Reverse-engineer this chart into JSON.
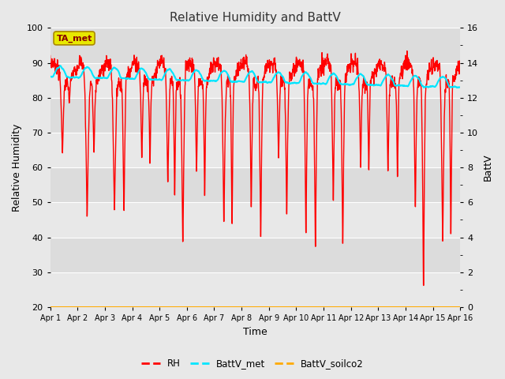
{
  "title": "Relative Humidity and BattV",
  "xlabel": "Time",
  "ylabel_left": "Relative Humidity",
  "ylabel_right": "BattV",
  "ylim_left": [
    20,
    100
  ],
  "ylim_right": [
    0,
    16
  ],
  "fig_bg_color": "#e8e8e8",
  "plot_bg_color": "#e0e0e0",
  "annotation_text": "TA_met",
  "annotation_bg": "#e8e800",
  "annotation_edge": "#aa8800",
  "annotation_text_color": "#880000",
  "rh_color": "#ff0000",
  "battv_met_color": "#00e5ff",
  "battv_soilco2_color": "#ffaa00",
  "x_ticks": [
    "Apr 1",
    "Apr 2",
    "Apr 3",
    "Apr 4",
    "Apr 5",
    "Apr 6",
    "Apr 7",
    "Apr 8",
    "Apr 9",
    "Apr 10",
    "Apr 11",
    "Apr 12",
    "Apr 13",
    "Apr 14",
    "Apr 15",
    "Apr 16"
  ],
  "n_days": 15,
  "pts_per_day": 144,
  "grid_colors": [
    "#d4d4d4",
    "#c8c8c8"
  ],
  "band_colors": [
    "#e8e8e8",
    "#dcdcdc"
  ]
}
